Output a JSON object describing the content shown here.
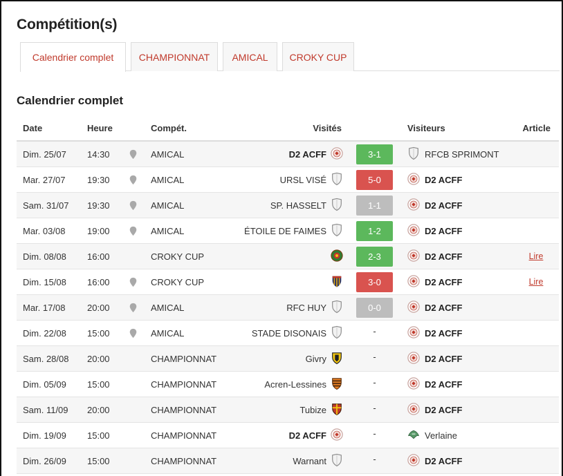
{
  "title": "Compétition(s)",
  "tabs": [
    {
      "label": "Calendrier complet",
      "active": true
    },
    {
      "label": "CHAMPIONNAT",
      "active": false
    },
    {
      "label": "AMICAL",
      "active": false
    },
    {
      "label": "CROKY CUP",
      "active": false
    }
  ],
  "section_title": "Calendrier complet",
  "columns": {
    "date": "Date",
    "time": "Heure",
    "comp": "Compét.",
    "home": "Visités",
    "away": "Visiteurs",
    "article": "Article"
  },
  "colors": {
    "accent": "#c0392b",
    "win": "#5cb85c",
    "loss": "#d9534f",
    "draw": "#bdbdbd"
  },
  "matches": [
    {
      "date": "Dim. 25/07",
      "time": "14:30",
      "pin": true,
      "comp": "AMICAL",
      "home": "D2 ACFF",
      "home_bold": true,
      "home_crest": "club-crest-icon",
      "score": "3-1",
      "result": "win",
      "away": "RFCB SPRIMONT",
      "away_bold": false,
      "away_crest": "shield-icon",
      "article": ""
    },
    {
      "date": "Mar. 27/07",
      "time": "19:30",
      "pin": true,
      "comp": "AMICAL",
      "home": "URSL VISÉ",
      "home_bold": false,
      "home_crest": "shield-icon",
      "score": "5-0",
      "result": "loss",
      "away": "D2 ACFF",
      "away_bold": true,
      "away_crest": "club-crest-icon",
      "article": ""
    },
    {
      "date": "Sam. 31/07",
      "time": "19:30",
      "pin": true,
      "comp": "AMICAL",
      "home": "SP. HASSELT",
      "home_bold": false,
      "home_crest": "shield-icon",
      "score": "1-1",
      "result": "draw",
      "away": "D2 ACFF",
      "away_bold": true,
      "away_crest": "club-crest-icon",
      "article": ""
    },
    {
      "date": "Mar. 03/08",
      "time": "19:00",
      "pin": true,
      "comp": "AMICAL",
      "home": "ÉTOILE DE FAIMES",
      "home_bold": false,
      "home_crest": "shield-icon",
      "score": "1-2",
      "result": "win",
      "away": "D2 ACFF",
      "away_bold": true,
      "away_crest": "club-crest-icon",
      "article": ""
    },
    {
      "date": "Dim. 08/08",
      "time": "16:00",
      "pin": false,
      "comp": "CROKY CUP",
      "home": "",
      "home_bold": false,
      "home_crest": "round-crest-icon",
      "score": "2-3",
      "result": "win",
      "away": "D2 ACFF",
      "away_bold": true,
      "away_crest": "club-crest-icon",
      "article": "Lire"
    },
    {
      "date": "Dim. 15/08",
      "time": "16:00",
      "pin": true,
      "comp": "CROKY CUP",
      "home": "",
      "home_bold": false,
      "home_crest": "striped-crest-icon",
      "score": "3-0",
      "result": "loss",
      "away": "D2 ACFF",
      "away_bold": true,
      "away_crest": "club-crest-icon",
      "article": "Lire"
    },
    {
      "date": "Mar. 17/08",
      "time": "20:00",
      "pin": true,
      "comp": "AMICAL",
      "home": "RFC HUY",
      "home_bold": false,
      "home_crest": "shield-icon",
      "score": "0-0",
      "result": "draw",
      "away": "D2 ACFF",
      "away_bold": true,
      "away_crest": "club-crest-icon",
      "article": ""
    },
    {
      "date": "Dim. 22/08",
      "time": "15:00",
      "pin": true,
      "comp": "AMICAL",
      "home": "STADE DISONAIS",
      "home_bold": false,
      "home_crest": "shield-icon",
      "score": "-",
      "result": "none",
      "away": "D2 ACFF",
      "away_bold": true,
      "away_crest": "club-crest-icon",
      "article": ""
    },
    {
      "date": "Sam. 28/08",
      "time": "20:00",
      "pin": false,
      "comp": "CHAMPIONNAT",
      "home": "Givry",
      "home_bold": false,
      "home_crest": "yellow-black-crest-icon",
      "score": "-",
      "result": "none",
      "away": "D2 ACFF",
      "away_bold": true,
      "away_crest": "club-crest-icon",
      "article": ""
    },
    {
      "date": "Dim. 05/09",
      "time": "15:00",
      "pin": false,
      "comp": "CHAMPIONNAT",
      "home": "Acren-Lessines",
      "home_bold": false,
      "home_crest": "orange-crest-icon",
      "score": "-",
      "result": "none",
      "away": "D2 ACFF",
      "away_bold": true,
      "away_crest": "club-crest-icon",
      "article": ""
    },
    {
      "date": "Sam. 11/09",
      "time": "20:00",
      "pin": false,
      "comp": "CHAMPIONNAT",
      "home": "Tubize",
      "home_bold": false,
      "home_crest": "red-crest-icon",
      "score": "-",
      "result": "none",
      "away": "D2 ACFF",
      "away_bold": true,
      "away_crest": "club-crest-icon",
      "article": ""
    },
    {
      "date": "Dim. 19/09",
      "time": "15:00",
      "pin": false,
      "comp": "CHAMPIONNAT",
      "home": "D2 ACFF",
      "home_bold": true,
      "home_crest": "club-crest-icon",
      "score": "-",
      "result": "none",
      "away": "Verlaine",
      "away_bold": false,
      "away_crest": "green-crest-icon",
      "article": ""
    },
    {
      "date": "Dim. 26/09",
      "time": "15:00",
      "pin": false,
      "comp": "CHAMPIONNAT",
      "home": "Warnant",
      "home_bold": false,
      "home_crest": "shield-icon",
      "score": "-",
      "result": "none",
      "away": "D2 ACFF",
      "away_bold": true,
      "away_crest": "club-crest-icon",
      "article": ""
    }
  ]
}
